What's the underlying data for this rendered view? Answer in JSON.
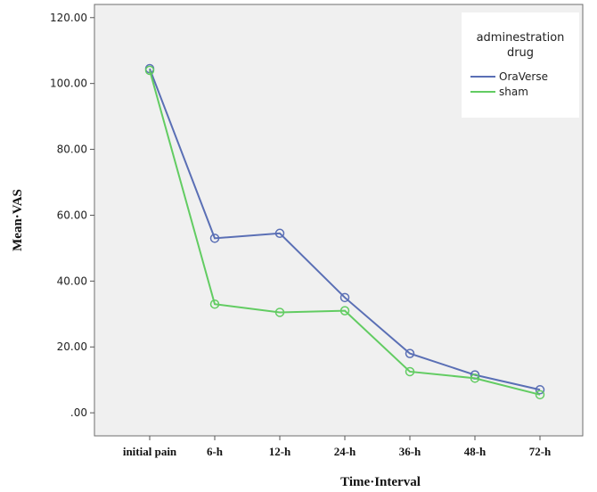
{
  "chart_data": {
    "type": "line",
    "xlabel": "Time·Interval",
    "ylabel": "Mean·VAS",
    "categories": [
      "initial pain",
      "6-h",
      "12-h",
      "24-h",
      "36-h",
      "48-h",
      "72-h"
    ],
    "y_ticks": [
      ".00",
      "20.00",
      "40.00",
      "60.00",
      "80.00",
      "100.00",
      "120.00"
    ],
    "ylim": [
      -7,
      124
    ],
    "grid": false,
    "legend": {
      "title_line1": "adminestration",
      "title_line2": "drug",
      "position": "top-right"
    },
    "series": [
      {
        "name": "OraVerse",
        "color": "#5a6fb5",
        "marker": "open-circle",
        "values": [
          104.5,
          53,
          54.5,
          35,
          18,
          11.5,
          7
        ]
      },
      {
        "name": "sham",
        "color": "#62cc62",
        "marker": "open-circle",
        "values": [
          104,
          33,
          30.5,
          31,
          12.5,
          10.5,
          5.5
        ]
      }
    ]
  }
}
